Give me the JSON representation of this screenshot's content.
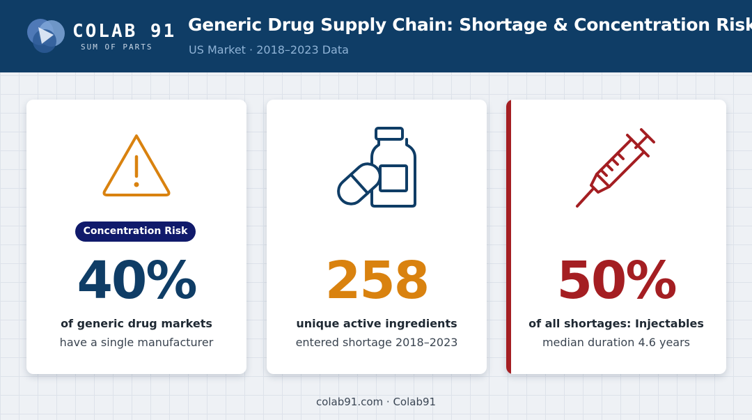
{
  "header": {
    "brand_name": "COLAB 91",
    "brand_tagline": "SUM OF PARTS",
    "title": "Generic Drug Supply Chain: Shortage & Concentration Risk",
    "subtitle": "US Market · 2018–2023 Data"
  },
  "colors": {
    "header_bg": "#0f3d66",
    "stat_blue": "#0f3d66",
    "stat_orange": "#d9820f",
    "stat_red": "#a41e22",
    "badge_bg": "#101a6b"
  },
  "cards": [
    {
      "icon": "warning-triangle-icon",
      "badge": "Concentration Risk",
      "value": "40%",
      "line1": "of generic drug markets",
      "line2": "have a single manufacturer"
    },
    {
      "icon": "pill-bottle-icon",
      "value": "258",
      "line1": "unique active ingredients",
      "line2": "entered shortage 2018–2023"
    },
    {
      "icon": "syringe-icon",
      "value": "50%",
      "line1": "of all shortages: Injectables",
      "line2": "median duration 4.6 years"
    }
  ],
  "footer": {
    "text": "colab91.com · Colab91"
  }
}
